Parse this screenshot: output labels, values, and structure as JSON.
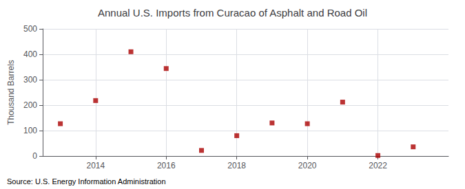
{
  "chart_data": {
    "type": "scatter",
    "title": "Annual U.S. Imports from Curacao of Asphalt and Road Oil",
    "ylabel": "Thousand Barrels",
    "annotation": "Source: U.S. Energy Information Administration",
    "x": [
      2013,
      2014,
      2015,
      2016,
      2017,
      2018,
      2019,
      2020,
      2021,
      2022,
      2023
    ],
    "values": [
      127,
      218,
      410,
      344,
      22,
      80,
      130,
      127,
      212,
      2,
      36
    ],
    "color": "#aa0000",
    "marker": "square",
    "xlim": [
      2012.5,
      2024.0
    ],
    "xticks": [
      2014,
      2016,
      2018,
      2020,
      2022
    ],
    "ylim": [
      0,
      500
    ],
    "yticks": [
      0,
      100,
      200,
      300,
      400,
      500
    ],
    "grid": true
  }
}
